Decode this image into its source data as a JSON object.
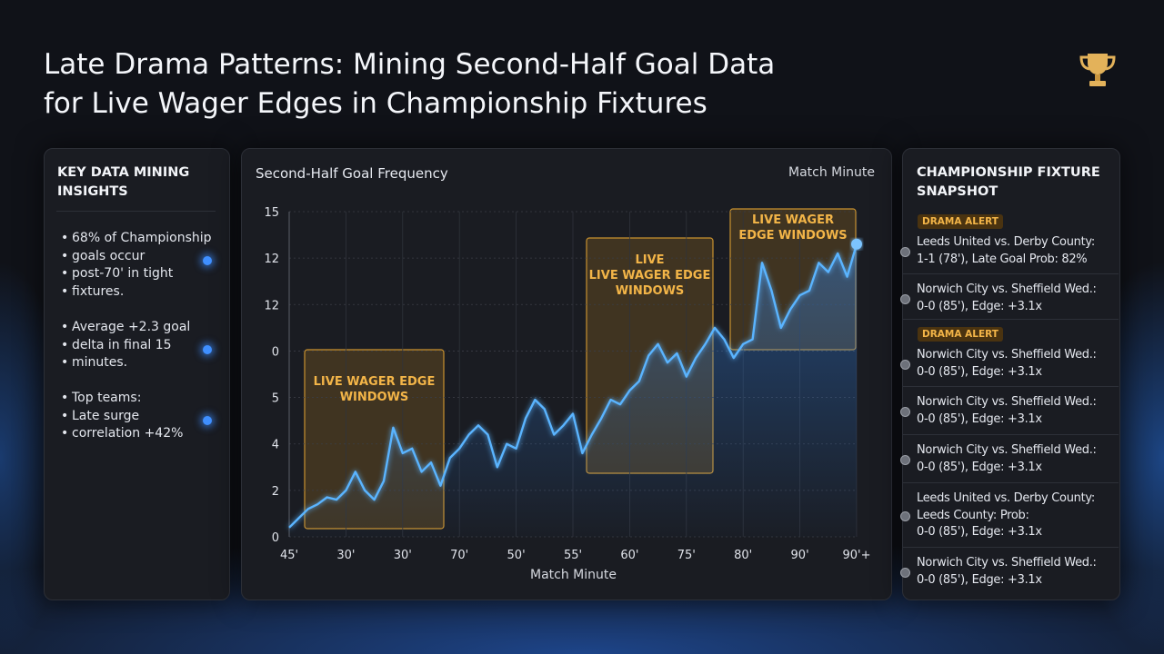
{
  "header": {
    "title_lines": [
      "Late Drama Patterns: Mining Second-Half Goal Data",
      "for Live Wager Edges in Championship Fixtures"
    ]
  },
  "insights": {
    "title": "KEY DATA MINING INSIGHTS",
    "items": [
      {
        "lines": [
          "68% of Championship",
          "goals occur",
          "post-70' in tight",
          "fixtures."
        ]
      },
      {
        "lines": [
          "Average +2.3 goal",
          "delta in final 15",
          "minutes."
        ]
      },
      {
        "lines": [
          "Top teams:",
          "Late surge",
          "correlation +42%"
        ]
      }
    ]
  },
  "chart_data": {
    "type": "line",
    "title": "Second-Half Goal Frequency",
    "subtitle": "Match Minute",
    "x_label": "Match Minute",
    "color": "#5ab4ff",
    "x": [
      0,
      1,
      2,
      3,
      4,
      5,
      6,
      7,
      8,
      9,
      10,
      11,
      12,
      13,
      14,
      15,
      16,
      17,
      18,
      19,
      20,
      21,
      22,
      23,
      24,
      25,
      26,
      27,
      28,
      29,
      30,
      31,
      32,
      33,
      34,
      35,
      36,
      37,
      38,
      39,
      40,
      41,
      42,
      43,
      44,
      45,
      46,
      47,
      48,
      49,
      50,
      51,
      52,
      53,
      54,
      55,
      56,
      57,
      58,
      59,
      60
    ],
    "values": [
      0.2,
      0.4,
      0.6,
      0.7,
      0.85,
      0.8,
      1.0,
      1.4,
      1.0,
      0.8,
      1.2,
      2.35,
      1.8,
      1.9,
      1.4,
      1.6,
      1.1,
      1.7,
      1.9,
      2.2,
      2.4,
      2.2,
      1.5,
      2.0,
      1.9,
      2.55,
      2.95,
      2.75,
      2.2,
      2.4,
      2.65,
      1.8,
      2.2,
      2.55,
      2.95,
      2.85,
      3.15,
      3.35,
      3.9,
      4.15,
      3.75,
      3.95,
      3.45,
      3.85,
      4.15,
      4.5,
      4.25,
      3.85,
      4.15,
      4.25,
      5.9,
      5.3,
      4.5,
      4.9,
      5.2,
      5.3,
      5.9,
      5.7,
      6.1,
      5.6,
      6.3
    ],
    "xlim": [
      0,
      60
    ],
    "xticks": [
      {
        "value": 0,
        "label": "45'"
      },
      {
        "value": 6,
        "label": "30'"
      },
      {
        "value": 12,
        "label": "30'"
      },
      {
        "value": 18,
        "label": "70'"
      },
      {
        "value": 24,
        "label": "50'"
      },
      {
        "value": 30,
        "label": "55'"
      },
      {
        "value": 36,
        "label": "60'"
      },
      {
        "value": 42,
        "label": "75'"
      },
      {
        "value": 48,
        "label": "80'"
      },
      {
        "value": 54,
        "label": "90'"
      },
      {
        "value": 60,
        "label": "90'+"
      }
    ],
    "ylim": [
      0,
      7
    ],
    "yticks": [
      0,
      {
        "value": 1,
        "label": "2"
      },
      {
        "value": 2,
        "label": "4"
      },
      {
        "value": 3,
        "label": "5"
      },
      {
        "value": 4,
        "label": "0"
      },
      {
        "value": 5,
        "label": "12"
      },
      {
        "value": 6,
        "label": "12"
      },
      {
        "value": 7,
        "label": "15"
      }
    ],
    "grid": true,
    "annotations": [
      {
        "lines": [
          "LIVE WAGER EDGE",
          "WINDOWS"
        ]
      },
      {
        "lines": [
          "LIVE",
          "LIVE WAGER EDGE",
          "WINDOWS"
        ]
      },
      {
        "lines": [
          "LIVE WAGER",
          "EDGE WINDOWS"
        ]
      }
    ]
  },
  "snapshot": {
    "title": "CHAMPIONSHIP FIXTURE SNAPSHOT",
    "items": [
      {
        "badge": "DRAMA ALERT",
        "lines": [
          "Leeds United vs. Derby County:",
          "1-1 (78'), Late Goal Prob: 82%"
        ]
      },
      {
        "lines": [
          "Norwich City vs. Sheffield Wed.:",
          "0-0 (85'), Edge: +3.1x"
        ]
      },
      {
        "badge": "DRAMA ALERT",
        "lines": [
          "Norwich City vs. Sheffield Wed.:",
          "0-0 (85'), Edge: +3.1x"
        ]
      },
      {
        "lines": [
          "Norwich City vs. Sheffield Wed.:",
          "0-0 (85'), Edge: +3.1x"
        ]
      },
      {
        "lines": [
          "Norwich City vs. Sheffield Wed.:",
          "0-0 (85'), Edge: +3.1x"
        ]
      },
      {
        "lines": [
          "Leeds United vs. Derby County:",
          "Leeds  County:  Prob:",
          "0-0 (85'), Edge: +3.1x"
        ]
      },
      {
        "lines": [
          "Norwich City vs. Sheffield Wed.:",
          "0-0 (85'), Edge: +3.1x"
        ]
      }
    ]
  }
}
